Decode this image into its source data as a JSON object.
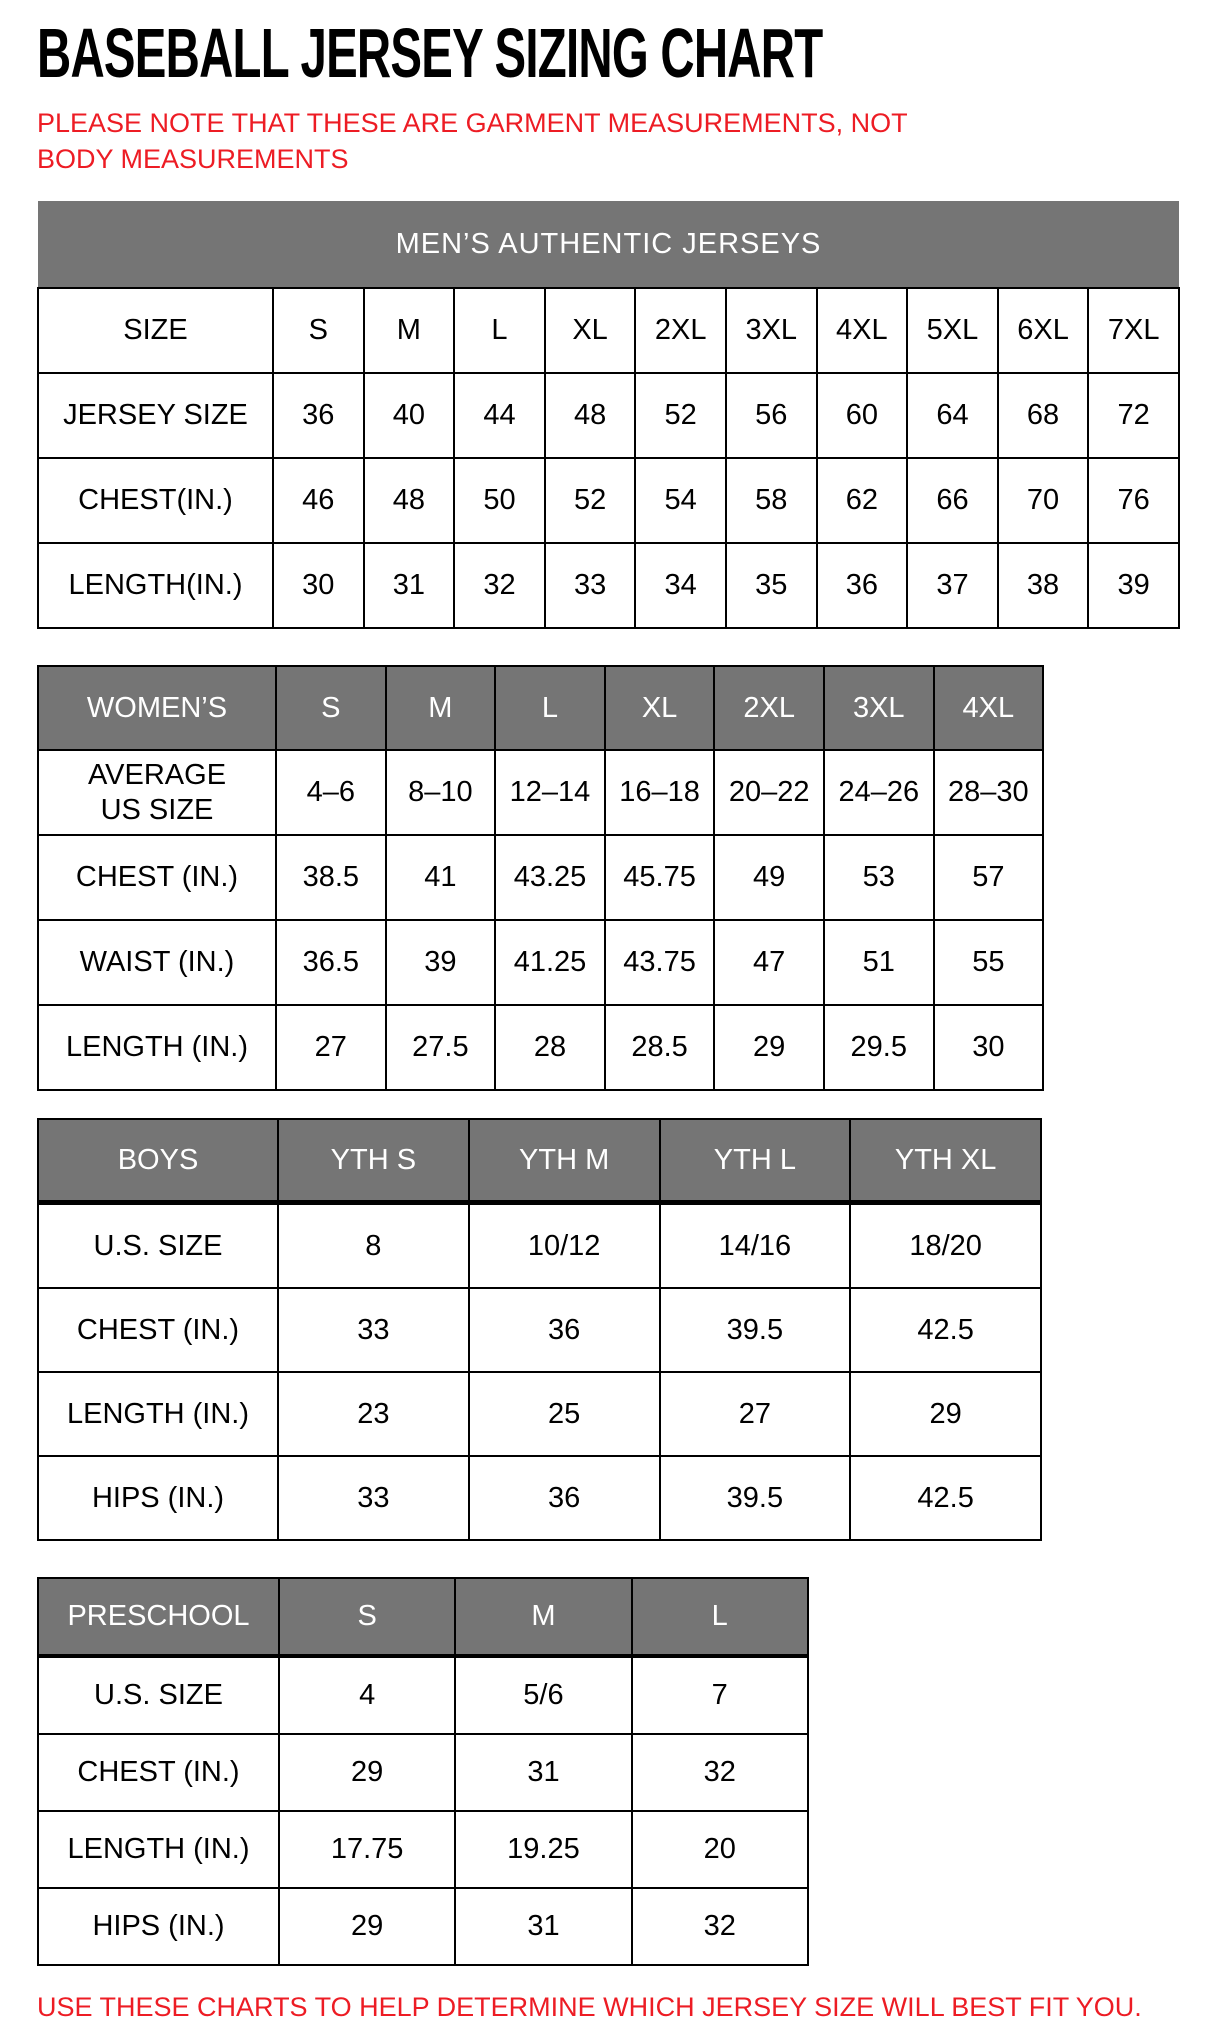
{
  "page": {
    "title": "BASEBALL JERSEY SIZING CHART",
    "note": "PLEASE NOTE THAT THESE ARE GARMENT MEASUREMENTS, NOT BODY MEASUREMENTS",
    "footer": "USE THESE CHARTS TO HELP DETERMINE WHICH JERSEY SIZE WILL BEST FIT YOU.",
    "colors": {
      "accent_red": "#ed1c24",
      "header_gray": "#757575",
      "header_text": "#ffffff",
      "border_black": "#000000"
    }
  },
  "tables": [
    {
      "id": "mens",
      "banner": "MEN’S AUTHENTIC JERSEYS",
      "header_label": "SIZE",
      "columns": [
        "S",
        "M",
        "L",
        "XL",
        "2XL",
        "3XL",
        "4XL",
        "5XL",
        "6XL",
        "7XL"
      ],
      "rows": [
        {
          "label": "JERSEY SIZE",
          "values": [
            "36",
            "40",
            "44",
            "48",
            "52",
            "56",
            "60",
            "64",
            "68",
            "72"
          ]
        },
        {
          "label": "CHEST(IN.)",
          "values": [
            "46",
            "48",
            "50",
            "52",
            "54",
            "58",
            "62",
            "66",
            "70",
            "76"
          ]
        },
        {
          "label": "LENGTH(IN.)",
          "values": [
            "30",
            "31",
            "32",
            "33",
            "34",
            "35",
            "36",
            "37",
            "38",
            "39"
          ]
        }
      ]
    },
    {
      "id": "womens",
      "header_label": "WOMEN’S",
      "columns": [
        "S",
        "M",
        "L",
        "XL",
        "2XL",
        "3XL",
        "4XL"
      ],
      "rows": [
        {
          "label": "AVERAGE\nUS SIZE",
          "values": [
            "4–6",
            "8–10",
            "12–14",
            "16–18",
            "20–22",
            "24–26",
            "28–30"
          ]
        },
        {
          "label": "CHEST (IN.)",
          "values": [
            "38.5",
            "41",
            "43.25",
            "45.75",
            "49",
            "53",
            "57"
          ]
        },
        {
          "label": "WAIST (IN.)",
          "values": [
            "36.5",
            "39",
            "41.25",
            "43.75",
            "47",
            "51",
            "55"
          ]
        },
        {
          "label": "LENGTH (IN.)",
          "values": [
            "27",
            "27.5",
            "28",
            "28.5",
            "29",
            "29.5",
            "30"
          ]
        }
      ]
    },
    {
      "id": "boys",
      "header_label": "BOYS",
      "columns": [
        "YTH S",
        "YTH M",
        "YTH L",
        "YTH XL"
      ],
      "rows": [
        {
          "label": "U.S. SIZE",
          "values": [
            "8",
            "10/12",
            "14/16",
            "18/20"
          ]
        },
        {
          "label": "CHEST (IN.)",
          "values": [
            "33",
            "36",
            "39.5",
            "42.5"
          ]
        },
        {
          "label": "LENGTH (IN.)",
          "values": [
            "23",
            "25",
            "27",
            "29"
          ]
        },
        {
          "label": "HIPS (IN.)",
          "values": [
            "33",
            "36",
            "39.5",
            "42.5"
          ]
        }
      ]
    },
    {
      "id": "preschool",
      "header_label": "PRESCHOOL",
      "columns": [
        "S",
        "M",
        "L"
      ],
      "rows": [
        {
          "label": "U.S. SIZE",
          "values": [
            "4",
            "5/6",
            "7"
          ]
        },
        {
          "label": "CHEST (IN.)",
          "values": [
            "29",
            "31",
            "32"
          ]
        },
        {
          "label": "LENGTH (IN.)",
          "values": [
            "17.75",
            "19.25",
            "20"
          ]
        },
        {
          "label": "HIPS (IN.)",
          "values": [
            "29",
            "31",
            "32"
          ]
        }
      ]
    }
  ]
}
